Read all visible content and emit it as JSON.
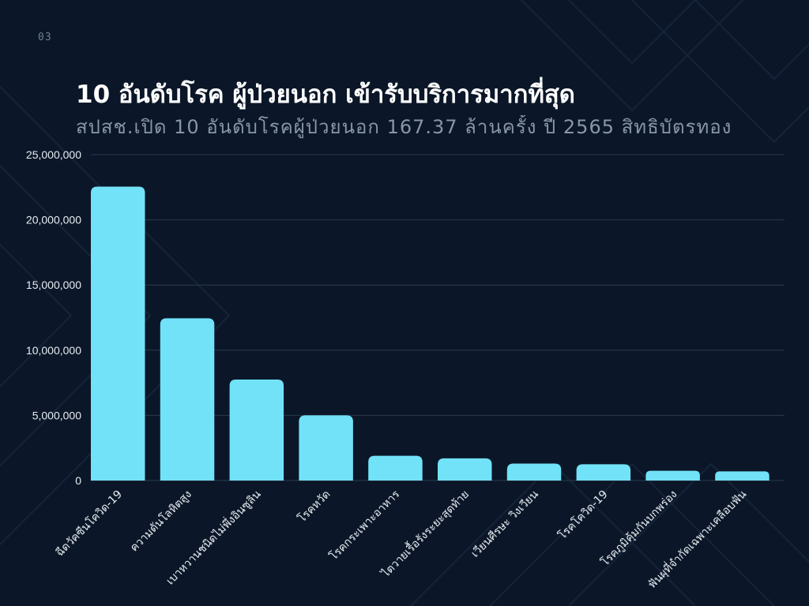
{
  "page": {
    "number": "03",
    "title": "10 อันดับโรค ผู้ป่วยนอก  เข้ารับบริการมากที่สุด",
    "subtitle": "สปสช.เปิด 10 อันดับโรคผู้ป่วยนอก 167.37 ล้านครั้ง  ปี 2565 สิทธิบัตรทอง"
  },
  "colors": {
    "background": "#0b1728",
    "bar": "#72e2f8",
    "grid": "#2b3a4d",
    "tick_text": "#e6ebf1"
  },
  "chart_data": {
    "type": "bar",
    "categories": [
      "ฉีดวัคซีนโควิด-19",
      "ความดันโลหิตสูง",
      "เบาหวานชนิดไม่พึ่งอินซูลิน",
      "โรคหวัด",
      "โรคกระเพาะอาหาร",
      "ไตวายเรื้อรังระยะสุดท้าย",
      "เวียนศีรษะ วิงเวียน",
      "โรคโควิด-19",
      "โรคภูมิคุ้มกันบกพร่อง",
      "ฟันผุที่จำกัดเฉพาะเคลือบฟัน"
    ],
    "values": [
      22550000,
      12450000,
      7750000,
      5000000,
      1900000,
      1700000,
      1300000,
      1250000,
      750000,
      700000
    ],
    "title": "",
    "xlabel": "",
    "ylabel": "",
    "ylim": [
      0,
      25000000
    ],
    "yticks": [
      0,
      5000000,
      10000000,
      15000000,
      20000000,
      25000000
    ],
    "ytick_labels": [
      "0",
      "5,000,000",
      "10,000,000",
      "15,000,000",
      "20,000,000",
      "25,000,000"
    ],
    "grid": true,
    "legend": "none"
  }
}
